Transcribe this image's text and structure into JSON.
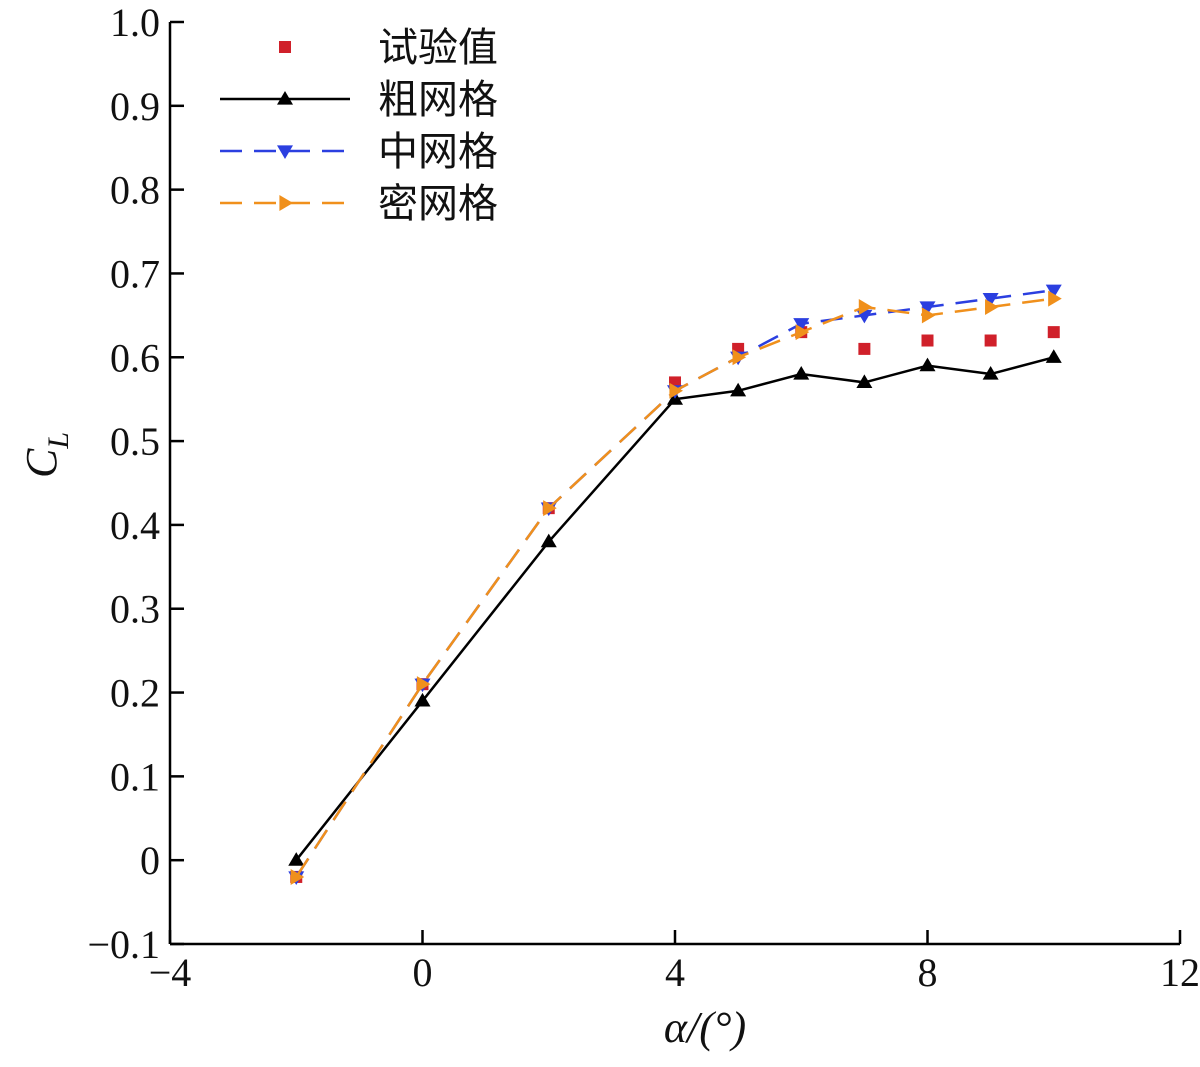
{
  "chart_data": {
    "type": "line",
    "xlabel": "α/(°)",
    "ylabel": "C",
    "ylabel_subscript": "L",
    "xlim": [
      -4,
      12
    ],
    "ylim": [
      -0.1,
      1.0
    ],
    "xticks": [
      -4,
      0,
      4,
      8,
      12
    ],
    "xtick_labels": [
      "−4",
      "0",
      "4",
      "8",
      "12"
    ],
    "yticks": [
      -0.1,
      0,
      0.1,
      0.2,
      0.3,
      0.4,
      0.5,
      0.6,
      0.7,
      0.8,
      0.9,
      1.0
    ],
    "ytick_labels": [
      "−0.1",
      "0",
      "0.1",
      "0.2",
      "0.3",
      "0.4",
      "0.5",
      "0.6",
      "0.7",
      "0.8",
      "0.9",
      "1.0"
    ],
    "grid": false,
    "legend_position": "top-left",
    "series": [
      {
        "name": "试验值",
        "style": "markers",
        "marker": "square",
        "color": "#d0202a",
        "x": [
          -2,
          0,
          2,
          4,
          5,
          6,
          7,
          8,
          9,
          10
        ],
        "y": [
          -0.02,
          0.21,
          0.42,
          0.57,
          0.61,
          0.63,
          0.61,
          0.62,
          0.62,
          0.63
        ]
      },
      {
        "name": "粗网格",
        "style": "solid",
        "marker": "triangle-up",
        "color": "#000000",
        "x": [
          -2,
          0,
          2,
          4,
          5,
          6,
          7,
          8,
          9,
          10
        ],
        "y": [
          0.0,
          0.19,
          0.38,
          0.55,
          0.56,
          0.58,
          0.57,
          0.59,
          0.58,
          0.6
        ]
      },
      {
        "name": "中网格",
        "style": "dashed",
        "marker": "triangle-down",
        "color": "#2b3fe0",
        "x": [
          -2,
          0,
          2,
          4,
          5,
          6,
          7,
          8,
          9,
          10
        ],
        "y": [
          -0.02,
          0.21,
          0.42,
          0.56,
          0.6,
          0.64,
          0.65,
          0.66,
          0.67,
          0.68
        ]
      },
      {
        "name": "密网格",
        "style": "dashed",
        "marker": "triangle-right",
        "color": "#f0901c",
        "x": [
          -2,
          0,
          2,
          4,
          5,
          6,
          7,
          8,
          9,
          10
        ],
        "y": [
          -0.02,
          0.21,
          0.42,
          0.56,
          0.6,
          0.63,
          0.66,
          0.65,
          0.66,
          0.67
        ]
      }
    ]
  }
}
